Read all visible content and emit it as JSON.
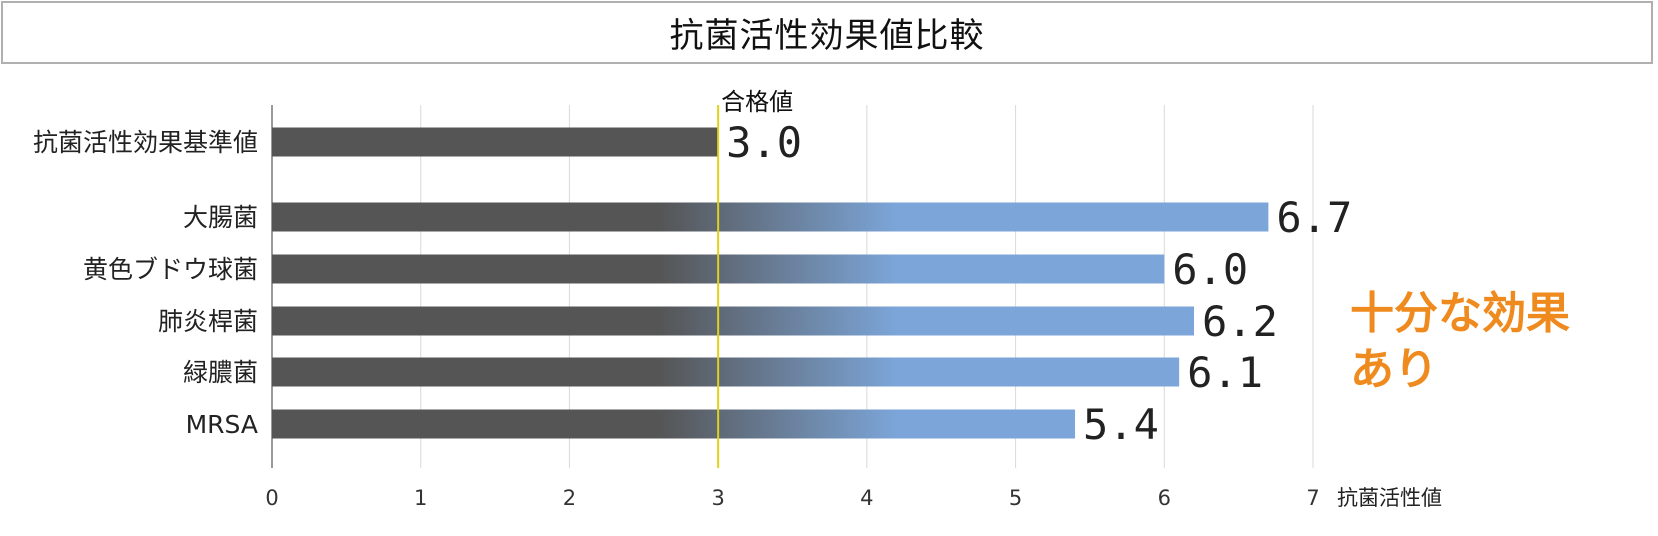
{
  "chart_data": {
    "type": "bar",
    "orientation": "horizontal",
    "title": "抗菌活性効果値比較",
    "xlabel": "抗菌活性値",
    "xlim": [
      0,
      7
    ],
    "x_ticks": [
      0,
      1,
      2,
      3,
      4,
      5,
      6,
      7
    ],
    "grid": true,
    "categories": [
      "抗菌活性効果基準値",
      "大腸菌",
      "黄色ブドウ球菌",
      "肺炎桿菌",
      "緑膿菌",
      "MRSA"
    ],
    "values": [
      3.0,
      6.7,
      6.0,
      6.2,
      6.1,
      5.4
    ],
    "value_labels": [
      "3.0",
      "6.7",
      "6.0",
      "6.2",
      "6.1",
      "5.4"
    ],
    "reference_line": {
      "value": 3,
      "label": "合格値",
      "color": "#e0d21a"
    },
    "annotation": {
      "lines": [
        "十分な効果",
        "あり"
      ],
      "color": "#ef8a1e"
    },
    "colors": {
      "bar_dark": "#555555",
      "bar_light": "#7ca6da",
      "grid": "#d9d9d9"
    }
  }
}
